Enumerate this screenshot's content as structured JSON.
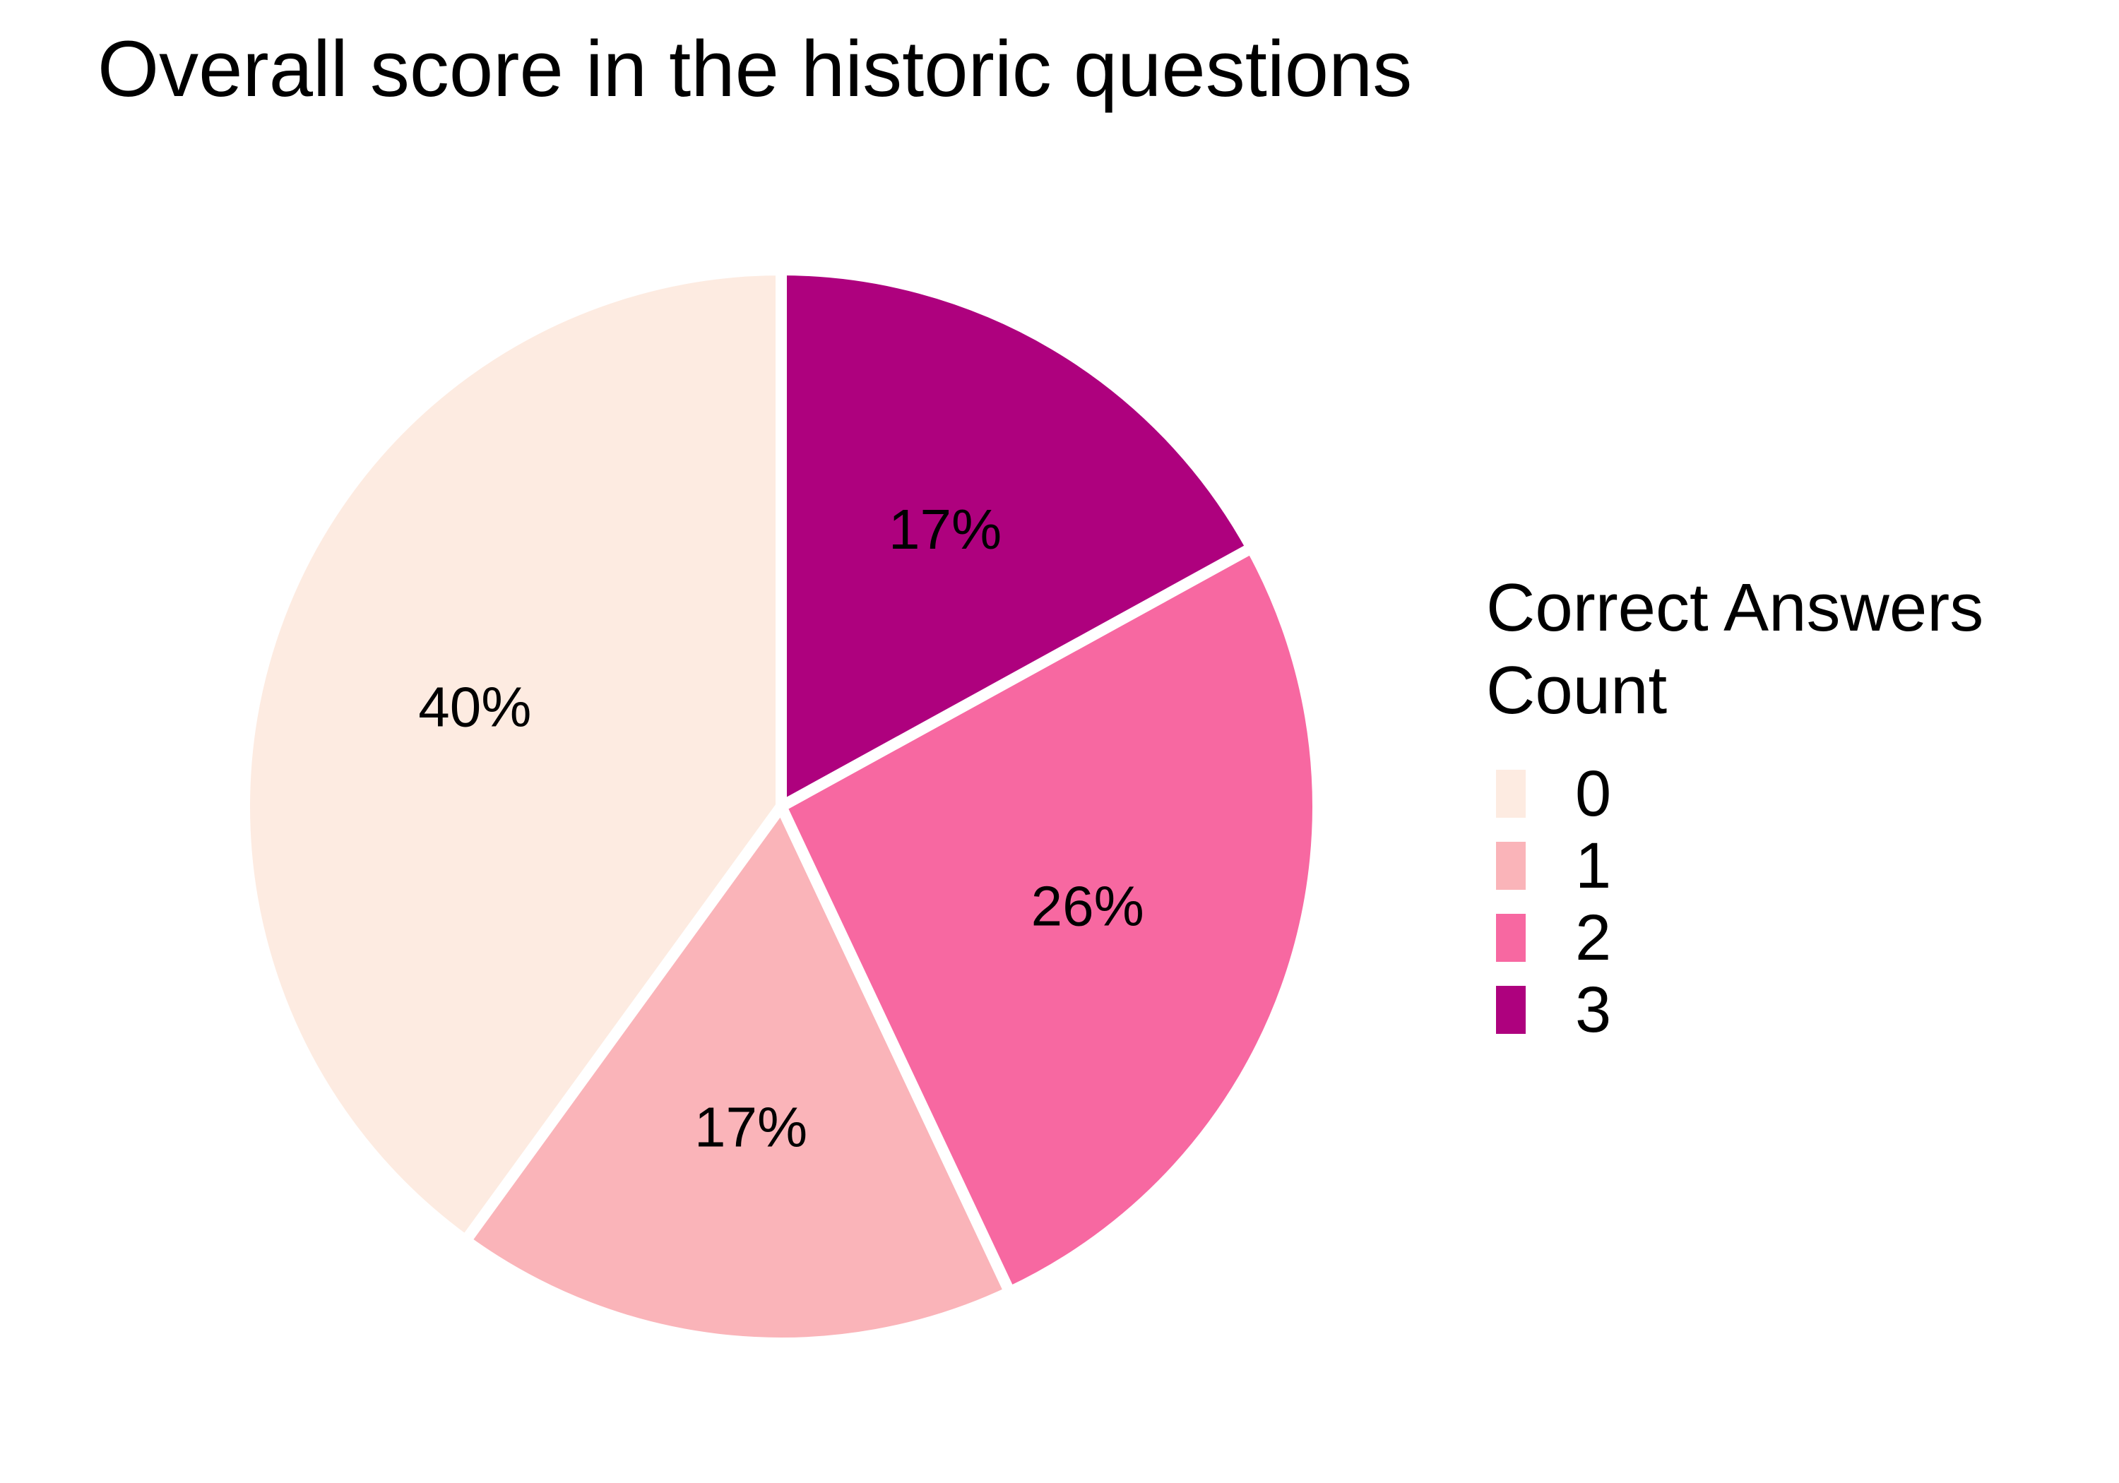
{
  "chart_data": {
    "type": "pie",
    "title": "Overall score in the historic questions",
    "categories": [
      "0",
      "1",
      "2",
      "3"
    ],
    "values": [
      40,
      17,
      26,
      17
    ],
    "labels": [
      "40%",
      "17%",
      "26%",
      "17%"
    ],
    "colors": [
      "#FDEBE1",
      "#FAB4B9",
      "#F768A1",
      "#AE017E"
    ],
    "legend": {
      "title_lines": [
        "Correct Answers",
        "Count"
      ],
      "placement": "right"
    },
    "start": "top",
    "direction": "counterclockwise",
    "slice_border_color": "#FFFFFF"
  }
}
